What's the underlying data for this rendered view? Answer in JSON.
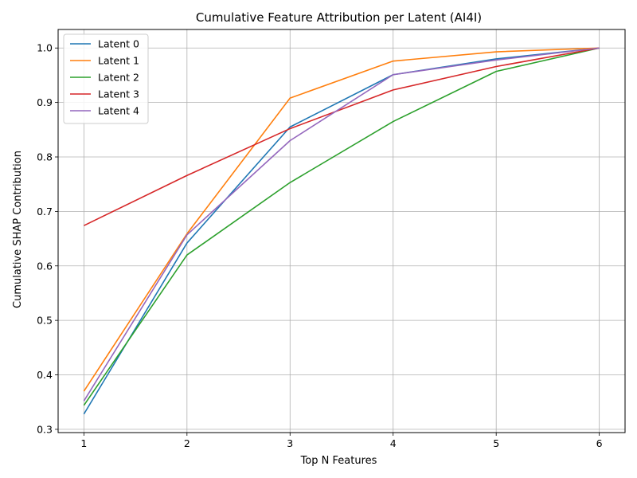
{
  "chart_data": {
    "type": "line",
    "title": "Cumulative Feature Attribution per Latent (AI4I)",
    "xlabel": "Top N Features",
    "ylabel": "Cumulative SHAP Contribution",
    "x": [
      1,
      2,
      3,
      4,
      5,
      6
    ],
    "xlim": [
      0.75,
      6.25
    ],
    "ylim": [
      0.294,
      1.034
    ],
    "xticks": [
      1,
      2,
      3,
      4,
      5,
      6
    ],
    "yticks": [
      0.3,
      0.4,
      0.5,
      0.6,
      0.7,
      0.8,
      0.9,
      1.0
    ],
    "grid": true,
    "legend_position": "top-left",
    "series": [
      {
        "name": "Latent 0",
        "color": "#1f77b4",
        "values": [
          0.328,
          0.642,
          0.855,
          0.951,
          0.98,
          1.0
        ]
      },
      {
        "name": "Latent 1",
        "color": "#ff7f0e",
        "values": [
          0.37,
          0.659,
          0.908,
          0.976,
          0.993,
          1.0
        ]
      },
      {
        "name": "Latent 2",
        "color": "#2ca02c",
        "values": [
          0.344,
          0.62,
          0.753,
          0.865,
          0.957,
          1.0
        ]
      },
      {
        "name": "Latent 3",
        "color": "#d62728",
        "values": [
          0.674,
          0.766,
          0.852,
          0.923,
          0.966,
          1.0
        ]
      },
      {
        "name": "Latent 4",
        "color": "#9467bd",
        "values": [
          0.352,
          0.657,
          0.83,
          0.951,
          0.978,
          1.0
        ]
      }
    ]
  }
}
